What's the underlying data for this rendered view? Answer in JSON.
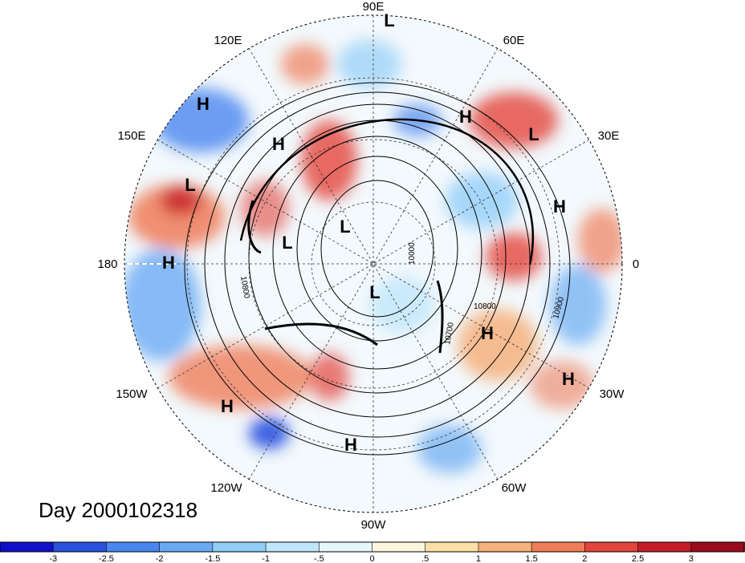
{
  "title": "Day 2000102318",
  "longitude_labels": {
    "n": "90E",
    "ne1": "60E",
    "ne2": "30E",
    "e": "0",
    "se1": "30W",
    "se2": "60W",
    "s": "90W",
    "sw1": "120W",
    "sw2": "150W",
    "w": "180",
    "nw1": "150E",
    "nw2": "120E"
  },
  "contour_labels": [
    "10800",
    "10800",
    "10700",
    "10900",
    "10000"
  ],
  "pressure_centers": [
    {
      "label": "L"
    },
    {
      "label": "H"
    },
    {
      "label": "H"
    },
    {
      "label": "L"
    },
    {
      "label": "L"
    },
    {
      "label": "H"
    },
    {
      "label": "H"
    },
    {
      "label": "L"
    },
    {
      "label": "L"
    },
    {
      "label": "H"
    },
    {
      "label": "H"
    },
    {
      "label": "H"
    },
    {
      "label": "L"
    },
    {
      "label": "H"
    },
    {
      "label": "H"
    }
  ],
  "colorbar": {
    "ticks": [
      "-3",
      "-2.5",
      "-2",
      "-1.5",
      "-1",
      "-.5",
      "0",
      ".5",
      "1",
      "1.5",
      "2",
      "2.5",
      "3"
    ],
    "colors": [
      "#1010c8",
      "#2a52e0",
      "#4a86ef",
      "#6aaaf4",
      "#92cef8",
      "#bfe6fb",
      "#e6f6fd",
      "#fdf6dd",
      "#fbe0a6",
      "#f6b27e",
      "#ef7d5a",
      "#e3443c",
      "#c41c27",
      "#9a0a1c"
    ]
  },
  "colors": {
    "background": "#ffffff",
    "contour": "#000000",
    "grid": "#333333"
  }
}
